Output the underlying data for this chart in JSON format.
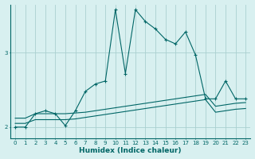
{
  "xlabel": "Humidex (Indice chaleur)",
  "ylabel": "",
  "background_color": "#d8f0f0",
  "grid_color": "#aad0d0",
  "line_color": "#006666",
  "xlim": [
    -0.5,
    23.5
  ],
  "ylim": [
    1.85,
    3.65
  ],
  "yticks": [
    2,
    3
  ],
  "xticks": [
    0,
    1,
    2,
    3,
    4,
    5,
    6,
    7,
    8,
    9,
    10,
    11,
    12,
    13,
    14,
    15,
    16,
    17,
    18,
    19,
    20,
    21,
    22,
    23
  ],
  "series1_x": [
    0,
    1,
    2,
    3,
    4,
    5,
    6,
    7,
    8,
    9,
    10,
    11,
    12,
    13,
    14,
    15,
    16,
    17,
    18,
    19,
    20,
    21,
    22,
    23
  ],
  "series1_y": [
    2.0,
    2.0,
    2.18,
    2.22,
    2.18,
    2.02,
    2.22,
    2.48,
    2.58,
    2.62,
    3.58,
    2.72,
    3.58,
    3.42,
    3.32,
    3.18,
    3.12,
    3.28,
    2.97,
    2.38,
    2.38,
    2.62,
    2.38,
    2.38
  ],
  "series2_x": [
    0,
    1,
    2,
    3,
    4,
    5,
    6,
    7,
    8,
    9,
    10,
    11,
    12,
    13,
    14,
    15,
    16,
    17,
    18,
    19,
    20,
    21,
    22,
    23
  ],
  "series2_y": [
    2.12,
    2.12,
    2.18,
    2.18,
    2.18,
    2.18,
    2.19,
    2.2,
    2.22,
    2.24,
    2.26,
    2.28,
    2.3,
    2.32,
    2.34,
    2.36,
    2.38,
    2.4,
    2.42,
    2.44,
    2.28,
    2.3,
    2.32,
    2.33
  ],
  "series3_x": [
    0,
    1,
    2,
    3,
    4,
    5,
    6,
    7,
    8,
    9,
    10,
    11,
    12,
    13,
    14,
    15,
    16,
    17,
    18,
    19,
    20,
    21,
    22,
    23
  ],
  "series3_y": [
    2.05,
    2.05,
    2.1,
    2.1,
    2.1,
    2.1,
    2.11,
    2.13,
    2.15,
    2.17,
    2.19,
    2.21,
    2.23,
    2.25,
    2.27,
    2.29,
    2.31,
    2.33,
    2.35,
    2.37,
    2.2,
    2.22,
    2.24,
    2.25
  ]
}
